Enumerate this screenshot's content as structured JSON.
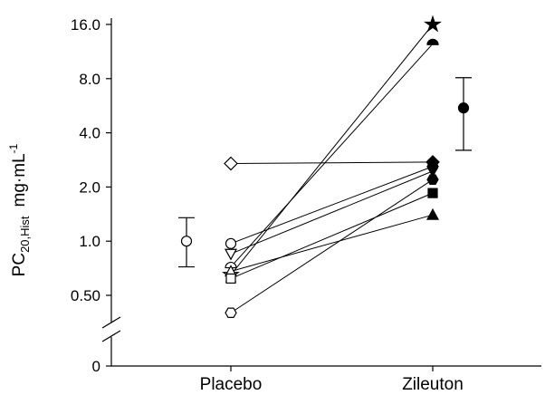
{
  "chart_data": {
    "type": "scatter",
    "y_scale": "log2",
    "ylabel": {
      "main": "PC",
      "sub": "20,Hist",
      "unit": "mg·mL",
      "sup": "-1"
    },
    "yticks": [
      "16.0",
      "8.0",
      "4.0",
      "2.0",
      "1.0",
      "0.50",
      "0"
    ],
    "ylim": [
      0.5,
      16
    ],
    "axis_break": true,
    "categories": [
      "Placebo",
      "Zileuton"
    ],
    "subjects": [
      {
        "marker": "star",
        "placebo": 0.65,
        "zileuton": 16.0
      },
      {
        "marker": "half-circle",
        "placebo": 0.72,
        "zileuton": 12.5
      },
      {
        "marker": "diamond",
        "placebo": 2.7,
        "zileuton": 2.75
      },
      {
        "marker": "circle",
        "placebo": 0.97,
        "zileuton": 2.6
      },
      {
        "marker": "triangle-down",
        "placebo": 0.85,
        "zileuton": 2.45
      },
      {
        "marker": "triangle-up",
        "placebo": 0.68,
        "zileuton": 1.4
      },
      {
        "marker": "square",
        "placebo": 0.62,
        "zileuton": 1.85
      },
      {
        "marker": "hexagon",
        "placebo": 0.4,
        "zileuton": 2.2
      }
    ],
    "summary": [
      {
        "category": "Placebo",
        "filled": false,
        "mean": 1.0,
        "low": 0.72,
        "high": 1.35
      },
      {
        "category": "Zileuton",
        "filled": true,
        "mean": 5.5,
        "low": 3.2,
        "high": 8.1
      }
    ]
  }
}
